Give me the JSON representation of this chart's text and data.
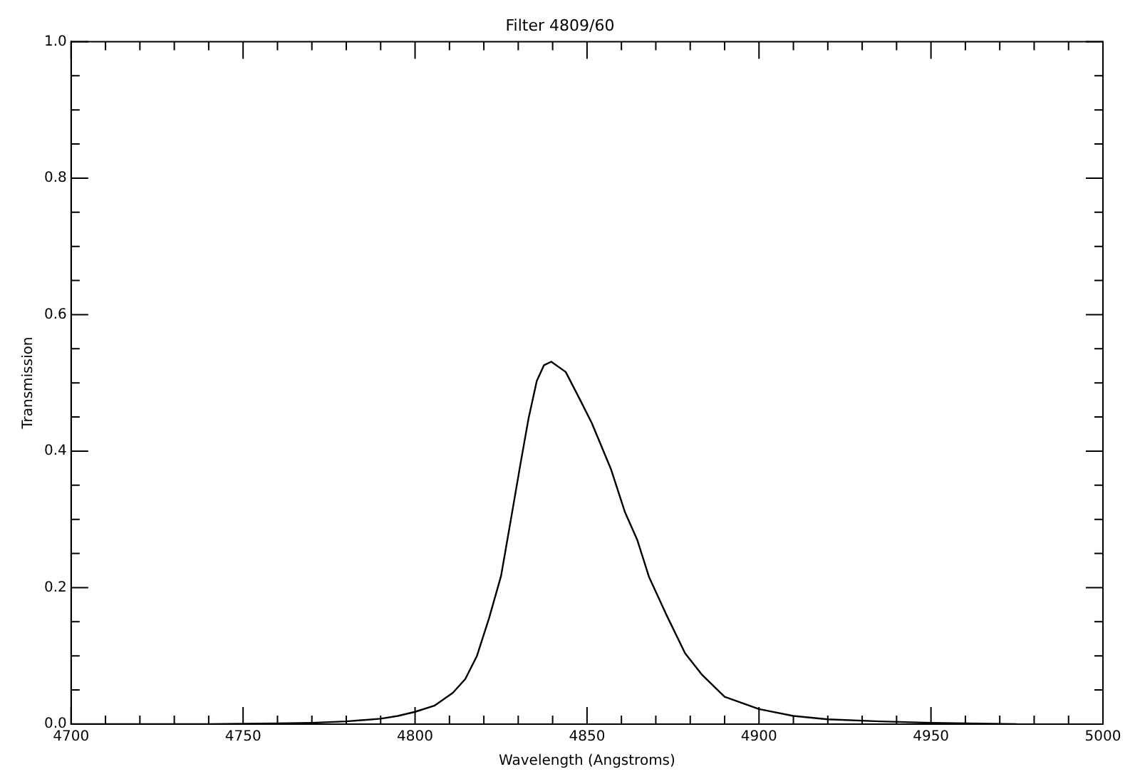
{
  "chart_data": {
    "type": "line",
    "title": "Filter 4809/60",
    "xlabel": "Wavelength (Angstroms)",
    "ylabel": "Transmission",
    "x": [
      4700,
      4720,
      4740,
      4760,
      4770,
      4780,
      4790,
      4795,
      4800,
      4805.6,
      4811,
      4814.6,
      4818,
      4821.5,
      4825,
      4827.8,
      4830.6,
      4833,
      4835.4,
      4837.5,
      4839.6,
      4843.8,
      4848,
      4851.4,
      4857,
      4861,
      4864.6,
      4868,
      4872.9,
      4878.5,
      4883.3,
      4890,
      4900,
      4910,
      4920,
      4935,
      4950,
      4975
    ],
    "series": [
      {
        "color": "#000000",
        "values": [
          0,
          0,
          0,
          0.001,
          0.002,
          0.004,
          0.008,
          0.012,
          0.018,
          0.027,
          0.046,
          0.066,
          0.1,
          0.155,
          0.217,
          0.298,
          0.38,
          0.448,
          0.503,
          0.526,
          0.531,
          0.516,
          0.475,
          0.441,
          0.373,
          0.311,
          0.27,
          0.216,
          0.162,
          0.104,
          0.073,
          0.04,
          0.022,
          0.012,
          0.007,
          0.004,
          0.002,
          0
        ]
      }
    ],
    "xlim": [
      4700,
      5000
    ],
    "ylim": [
      0,
      1
    ],
    "xticks": [
      4700,
      {
        "value": 4710,
        "label": null
      },
      {
        "value": 4720,
        "label": null
      },
      {
        "value": 4730,
        "label": null
      },
      {
        "value": 4740,
        "label": null
      },
      4750,
      {
        "value": 4760,
        "label": null
      },
      {
        "value": 4770,
        "label": null
      },
      {
        "value": 4780,
        "label": null
      },
      {
        "value": 4790,
        "label": null
      },
      4800,
      {
        "value": 4810,
        "label": null
      },
      {
        "value": 4820,
        "label": null
      },
      {
        "value": 4830,
        "label": null
      },
      {
        "value": 4840,
        "label": null
      },
      4850,
      {
        "value": 4860,
        "label": null
      },
      {
        "value": 4870,
        "label": null
      },
      {
        "value": 4880,
        "label": null
      },
      {
        "value": 4890,
        "label": null
      },
      4900,
      {
        "value": 4910,
        "label": null
      },
      {
        "value": 4920,
        "label": null
      },
      {
        "value": 4930,
        "label": null
      },
      {
        "value": 4940,
        "label": null
      },
      4950,
      {
        "value": 4960,
        "label": null
      },
      {
        "value": 4970,
        "label": null
      },
      {
        "value": 4980,
        "label": null
      },
      {
        "value": 4990,
        "label": null
      },
      5000
    ],
    "yticks": [
      {
        "value": 0,
        "label": "0.0"
      },
      {
        "value": 0.05,
        "label": null
      },
      {
        "value": 0.1,
        "label": null
      },
      {
        "value": 0.15,
        "label": null
      },
      {
        "value": 0.2,
        "label": "0.2"
      },
      {
        "value": 0.25,
        "label": null
      },
      {
        "value": 0.3,
        "label": null
      },
      {
        "value": 0.35,
        "label": null
      },
      {
        "value": 0.4,
        "label": "0.4"
      },
      {
        "value": 0.45,
        "label": null
      },
      {
        "value": 0.5,
        "label": null
      },
      {
        "value": 0.55,
        "label": null
      },
      {
        "value": 0.6,
        "label": "0.6"
      },
      {
        "value": 0.65,
        "label": null
      },
      {
        "value": 0.7,
        "label": null
      },
      {
        "value": 0.75,
        "label": null
      },
      {
        "value": 0.8,
        "label": "0.8"
      },
      {
        "value": 0.85,
        "label": null
      },
      {
        "value": 0.9,
        "label": null
      },
      {
        "value": 0.95,
        "label": null
      },
      {
        "value": 1,
        "label": "1.0"
      }
    ],
    "grid": false,
    "legend": false,
    "marker": "none",
    "line_style": "solid"
  }
}
